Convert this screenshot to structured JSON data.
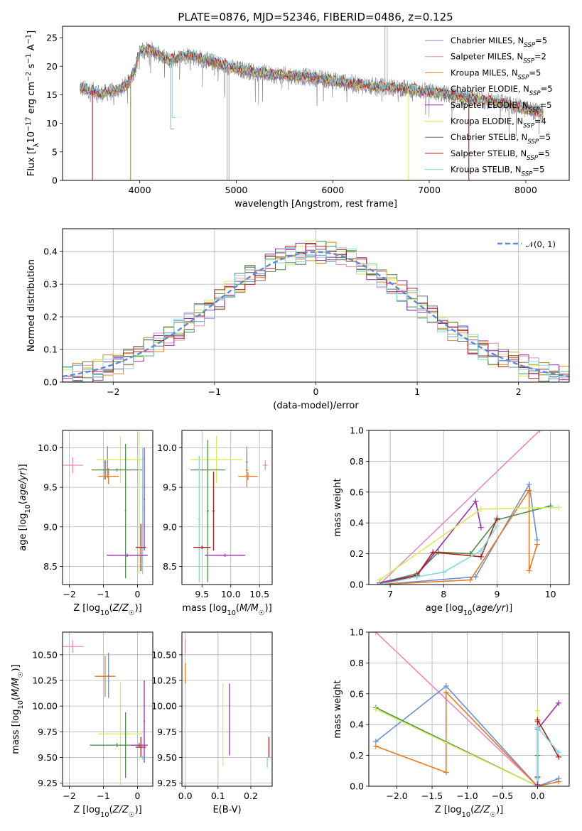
{
  "title": "PLATE=0876, MJD=52346, FIBERID=0486, z=0.125",
  "colors": {
    "chabrier_miles": "#6b8fd6",
    "salpeter_miles": "#e88bbf",
    "kroupa_miles": "#c98a1a",
    "chabrier_elodie": "#4e8a4e",
    "salpeter_elodie": "#9a2fae",
    "kroupa_elodie": "#d8eb5a",
    "chabrier_stelib": "#6e6e6e",
    "salpeter_stelib": "#b01c1c",
    "kroupa_stelib": "#7fd9df",
    "gauss": "#5b8bd6",
    "orange": "#e87a1e",
    "pink": "#e88bbf",
    "data_grey": "#b0b0b0"
  },
  "chart_data": [
    {
      "id": "spectrum",
      "type": "line",
      "title": "PLATE=0876, MJD=52346, FIBERID=0486, z=0.125",
      "xlabel": "wavelength [Angstrom, rest frame]",
      "ylabel": "Flux [f_λ 10^-17 erg cm^-2 s^-1 A^-1]",
      "xlim": [
        3200,
        8450
      ],
      "ylim": [
        0,
        27
      ],
      "xticks": [
        4000,
        5000,
        6000,
        7000,
        8000
      ],
      "yticks": [
        0,
        5,
        10,
        15,
        20,
        25
      ],
      "grid": false,
      "legend_position": "top-right",
      "legend": [
        {
          "main": "Chabrier MILES, N",
          "sub": "SSP",
          "tail": "=5",
          "color": "chabrier_miles"
        },
        {
          "main": "Salpeter MILES, N",
          "sub": "SSP",
          "tail": "=2",
          "color": "salpeter_miles"
        },
        {
          "main": "Kroupa MILES, N",
          "sub": "SSP",
          "tail": "=5",
          "color": "kroupa_miles"
        },
        {
          "main": "Chabrier ELODIE, N",
          "sub": "SSP",
          "tail": "=5",
          "color": "chabrier_elodie"
        },
        {
          "main": "Salpeter ELODIE, N",
          "sub": "SSP",
          "tail": "=5",
          "color": "salpeter_elodie"
        },
        {
          "main": "Kroupa ELODIE, N",
          "sub": "SSP",
          "tail": "=4",
          "color": "kroupa_elodie"
        },
        {
          "main": "Chabrier STELIB, N",
          "sub": "SSP",
          "tail": "=5",
          "color": "chabrier_stelib"
        },
        {
          "main": "Salpeter STELIB, N",
          "sub": "SSP",
          "tail": "=5",
          "color": "salpeter_stelib"
        },
        {
          "main": "Kroupa STELIB, N",
          "sub": "SSP",
          "tail": "=5",
          "color": "kroupa_stelib"
        }
      ],
      "continuum": [
        [
          3380,
          16.2
        ],
        [
          3500,
          15.8
        ],
        [
          3600,
          15.2
        ],
        [
          3700,
          15.5
        ],
        [
          3800,
          16.0
        ],
        [
          3880,
          17.0
        ],
        [
          3950,
          19.5
        ],
        [
          4000,
          22.5
        ],
        [
          4100,
          23.0
        ],
        [
          4200,
          22.0
        ],
        [
          4300,
          21.0
        ],
        [
          4400,
          21.5
        ],
        [
          4500,
          22.0
        ],
        [
          4600,
          21.5
        ],
        [
          4800,
          20.5
        ],
        [
          5000,
          19.5
        ],
        [
          5200,
          19.0
        ],
        [
          5400,
          18.5
        ],
        [
          5600,
          18.3
        ],
        [
          5800,
          18.0
        ],
        [
          6000,
          17.5
        ],
        [
          6200,
          17.0
        ],
        [
          6400,
          16.5
        ],
        [
          6600,
          16.3
        ],
        [
          6800,
          16.0
        ],
        [
          7000,
          15.5
        ],
        [
          7200,
          15.0
        ],
        [
          7400,
          14.5
        ],
        [
          7600,
          14.0
        ],
        [
          7800,
          13.5
        ],
        [
          8000,
          12.5
        ],
        [
          8180,
          11.8
        ]
      ],
      "dips": [
        {
          "x": 3510,
          "y": 0,
          "color": "salpeter_stelib"
        },
        {
          "x": 3905,
          "y": 0,
          "color": "kroupa_miles"
        },
        {
          "x": 4320,
          "y": 9,
          "color": "data_grey"
        },
        {
          "x": 4335,
          "y": 11,
          "color": "kroupa_stelib"
        },
        {
          "x": 4905,
          "y": 0,
          "color": "data_grey"
        },
        {
          "x": 4925,
          "y": 0,
          "color": "data_grey"
        },
        {
          "x": 6785,
          "y": 0,
          "color": "kroupa_elodie"
        },
        {
          "x": 7410,
          "y": 0,
          "color": "salpeter_stelib"
        }
      ],
      "spikes": [
        {
          "x": 6540,
          "y": 27
        },
        {
          "x": 6565,
          "y": 27
        }
      ]
    },
    {
      "id": "residuals",
      "type": "line",
      "xlabel": "(data-model)/error",
      "ylabel": "Normed distribution",
      "xlim": [
        -2.5,
        2.5
      ],
      "ylim": [
        0,
        0.47
      ],
      "xticks": [
        -2,
        -1,
        0,
        1,
        2
      ],
      "yticks": [
        0.0,
        0.1,
        0.2,
        0.3,
        0.4
      ],
      "grid": true,
      "legend_position": "top-right",
      "legend": [
        {
          "label": "𝒩(0, 1)",
          "color": "gauss",
          "style": "dashed"
        }
      ],
      "gaussian": {
        "mean": 0,
        "sigma": 1
      },
      "histogram_bin_width": 0.1,
      "histogram_series": 9
    },
    {
      "id": "age_vs_Z",
      "type": "scatter",
      "xlabel": "Z [log10(Z/Z☉)]",
      "ylabel": "age [log10(age/yr)]",
      "xlim": [
        -2.2,
        0.45
      ],
      "ylim": [
        8.27,
        10.22
      ],
      "xticks": [
        -2,
        -1,
        0
      ],
      "yticks": [
        8.5,
        9.0,
        9.5,
        10.0
      ],
      "grid": true,
      "points": [
        {
          "x": -1.9,
          "y": 9.78,
          "xerr": 0.3,
          "yerr": 0.1,
          "color": "pink"
        },
        {
          "x": -0.95,
          "y": 9.72,
          "xerr": 0.02,
          "yerr": 0.12,
          "color": "salpeter_stelib"
        },
        {
          "x": -0.85,
          "y": 9.64,
          "xerr": 0.3,
          "yerr": 0.1,
          "color": "orange"
        },
        {
          "x": -0.88,
          "y": 9.82,
          "xerr": 0.02,
          "yerr": 0.2,
          "color": "chabrier_miles"
        },
        {
          "x": -0.5,
          "y": 9.85,
          "xerr": 0.7,
          "yerr": 0.3,
          "color": "kroupa_elodie"
        },
        {
          "x": -0.6,
          "y": 9.72,
          "xerr": 0.75,
          "yerr": 0.02,
          "color": "chabrier_elodie"
        },
        {
          "x": -0.35,
          "y": 9.2,
          "xerr": 0.02,
          "yerr": 0.85,
          "color": "chabrier_elodie"
        },
        {
          "x": 0.05,
          "y": 9.3,
          "xerr": 0.02,
          "yerr": 0.9,
          "color": "kroupa_elodie"
        },
        {
          "x": 0.15,
          "y": 9.2,
          "xerr": 0.02,
          "yerr": 0.8,
          "color": "kroupa_stelib"
        },
        {
          "x": 0.2,
          "y": 9.35,
          "xerr": 0.02,
          "yerr": 0.65,
          "color": "salpeter_elodie"
        },
        {
          "x": 0.1,
          "y": 8.74,
          "xerr": 0.15,
          "yerr": 0.3,
          "color": "salpeter_stelib"
        },
        {
          "x": -0.3,
          "y": 8.64,
          "xerr": 0.6,
          "yerr": 0.02,
          "color": "salpeter_elodie"
        }
      ]
    },
    {
      "id": "age_vs_mass",
      "type": "scatter",
      "xlabel": "mass [log10(M/M☉)]",
      "ylabel": "",
      "xlim": [
        9.15,
        10.72
      ],
      "ylim": [
        8.27,
        10.22
      ],
      "xticks": [
        9.5,
        10.0,
        10.5
      ],
      "yticks": [
        8.5,
        9.0,
        9.5,
        10.0
      ],
      "grid": true,
      "points": [
        {
          "x": 10.6,
          "y": 9.78,
          "xerr": 0.04,
          "yerr": 0.06,
          "color": "pink"
        },
        {
          "x": 10.3,
          "y": 9.64,
          "xerr": 0.17,
          "yerr": 0.05,
          "color": "orange"
        },
        {
          "x": 10.28,
          "y": 9.82,
          "xerr": 0.02,
          "yerr": 0.2,
          "color": "chabrier_miles"
        },
        {
          "x": 10.28,
          "y": 9.72,
          "xerr": 0.02,
          "yerr": 0.22,
          "color": "orange"
        },
        {
          "x": 9.75,
          "y": 9.85,
          "xerr": 0.45,
          "yerr": 0.3,
          "color": "kroupa_elodie"
        },
        {
          "x": 9.6,
          "y": 9.72,
          "xerr": 0.3,
          "yerr": 0.02,
          "color": "chabrier_elodie"
        },
        {
          "x": 9.6,
          "y": 9.2,
          "xerr": 0.02,
          "yerr": 0.9,
          "color": "chabrier_elodie"
        },
        {
          "x": 9.45,
          "y": 9.1,
          "xerr": 0.02,
          "yerr": 0.8,
          "color": "kroupa_stelib"
        },
        {
          "x": 9.7,
          "y": 9.2,
          "xerr": 0.02,
          "yerr": 0.5,
          "color": "salpeter_stelib"
        },
        {
          "x": 9.5,
          "y": 8.74,
          "xerr": 0.15,
          "yerr": 0.02,
          "color": "salpeter_stelib"
        },
        {
          "x": 9.9,
          "y": 8.64,
          "xerr": 0.35,
          "yerr": 0.02,
          "color": "salpeter_elodie"
        }
      ]
    },
    {
      "id": "weight_vs_age",
      "type": "line",
      "xlabel": "age [log10(age/yr)]",
      "ylabel": "mass weight",
      "xlim": [
        6.6,
        10.35
      ],
      "ylim": [
        0,
        1.0
      ],
      "xticks": [
        7,
        8,
        9,
        10
      ],
      "yticks": [
        0.0,
        0.2,
        0.4,
        0.6,
        0.8,
        1.0
      ],
      "grid": true,
      "series": [
        {
          "color": "pink",
          "x": [
            6.8,
            9.8
          ],
          "y": [
            0.0,
            1.0
          ]
        },
        {
          "color": "chabrier_miles",
          "x": [
            6.8,
            8.6,
            9.6,
            9.75
          ],
          "y": [
            0.0,
            0.05,
            0.65,
            0.29
          ]
        },
        {
          "color": "orange",
          "x": [
            6.8,
            8.5,
            9.6,
            9.6,
            9.75
          ],
          "y": [
            0.0,
            0.03,
            0.61,
            0.09,
            0.26
          ]
        },
        {
          "color": "chabrier_elodie",
          "x": [
            6.8,
            7.5,
            7.9,
            8.5,
            9.0,
            10.0
          ],
          "y": [
            0.01,
            0.07,
            0.21,
            0.2,
            0.42,
            0.51
          ]
        },
        {
          "color": "salpeter_elodie",
          "x": [
            6.8,
            7.5,
            8.6,
            8.7
          ],
          "y": [
            0.01,
            0.06,
            0.54,
            0.37
          ]
        },
        {
          "color": "kroupa_elodie",
          "x": [
            6.8,
            8.7,
            10.15
          ],
          "y": [
            0.03,
            0.49,
            0.5
          ]
        },
        {
          "color": "salpeter_stelib",
          "x": [
            6.8,
            7.5,
            7.8,
            8.7,
            9.0
          ],
          "y": [
            0.0,
            0.06,
            0.21,
            0.18,
            0.43
          ]
        },
        {
          "color": "kroupa_stelib",
          "x": [
            6.8,
            7.5,
            8.0,
            8.7,
            9.0
          ],
          "y": [
            0.0,
            0.05,
            0.08,
            0.22,
            0.38
          ]
        }
      ]
    },
    {
      "id": "mass_vs_Z",
      "type": "scatter",
      "xlabel": "Z [log10(Z/Z☉)]",
      "ylabel": "mass [log10(M/M☉)]",
      "xlim": [
        -2.2,
        0.45
      ],
      "ylim": [
        9.22,
        10.72
      ],
      "xticks": [
        -2,
        -1,
        0
      ],
      "yticks": [
        9.25,
        9.5,
        9.75,
        10.0,
        10.25,
        10.5
      ],
      "grid": true,
      "points": [
        {
          "x": -1.9,
          "y": 10.58,
          "xerr": 0.3,
          "yerr": 0.06,
          "color": "pink"
        },
        {
          "x": -0.95,
          "y": 10.29,
          "xerr": 0.3,
          "yerr": 0.2,
          "color": "orange"
        },
        {
          "x": -0.85,
          "y": 10.3,
          "xerr": 0.02,
          "yerr": 0.22,
          "color": "chabrier_miles"
        },
        {
          "x": -0.5,
          "y": 9.73,
          "xerr": 0.65,
          "yerr": 0.5,
          "color": "kroupa_elodie"
        },
        {
          "x": -0.6,
          "y": 9.62,
          "xerr": 0.8,
          "yerr": 0.02,
          "color": "chabrier_elodie"
        },
        {
          "x": -0.35,
          "y": 9.62,
          "xerr": 0.02,
          "yerr": 0.32,
          "color": "chabrier_elodie"
        },
        {
          "x": 0.05,
          "y": 9.62,
          "xerr": 0.25,
          "yerr": 0.02,
          "color": "salpeter_elodie"
        },
        {
          "x": 0.1,
          "y": 9.6,
          "xerr": 0.15,
          "yerr": 0.1,
          "color": "salpeter_stelib"
        },
        {
          "x": 0.15,
          "y": 9.5,
          "xerr": 0.15,
          "yerr": 0.02,
          "color": "kroupa_stelib"
        },
        {
          "x": 0.2,
          "y": 9.85,
          "xerr": 0.02,
          "yerr": 0.4,
          "color": "salpeter_elodie"
        }
      ]
    },
    {
      "id": "mass_vs_ebv",
      "type": "scatter",
      "xlabel": "E(B-V)",
      "ylabel": "",
      "xlim": [
        -0.01,
        0.265
      ],
      "ylim": [
        9.22,
        10.72
      ],
      "xticks": [
        0.0,
        0.1,
        0.2
      ],
      "yticks": [
        9.25,
        9.5,
        9.75,
        10.0,
        10.25,
        10.5
      ],
      "grid": true,
      "points": [
        {
          "x": 0.0,
          "y": 10.58,
          "xerr": 0.0,
          "yerr": 0.07,
          "color": "pink"
        },
        {
          "x": 0.0,
          "y": 10.32,
          "xerr": 0.0,
          "yerr": 0.1,
          "color": "orange"
        },
        {
          "x": 0.115,
          "y": 9.82,
          "xerr": 0.0,
          "yerr": 0.4,
          "color": "kroupa_elodie"
        },
        {
          "x": 0.135,
          "y": 9.87,
          "xerr": 0.0,
          "yerr": 0.35,
          "color": "salpeter_elodie"
        },
        {
          "x": 0.25,
          "y": 9.45,
          "xerr": 0.0,
          "yerr": 0.05,
          "color": "kroupa_stelib"
        },
        {
          "x": 0.255,
          "y": 9.6,
          "xerr": 0.0,
          "yerr": 0.1,
          "color": "salpeter_stelib"
        }
      ]
    },
    {
      "id": "weight_vs_Z",
      "type": "line",
      "xlabel": "Z [log10(Z/Z☉)]",
      "ylabel": "mass weight",
      "xlim": [
        -2.4,
        0.45
      ],
      "ylim": [
        0,
        1.0
      ],
      "xticks": [
        -2.0,
        -1.5,
        -1.0,
        -0.5,
        0.0
      ],
      "yticks": [
        0.0,
        0.2,
        0.4,
        0.6,
        0.8,
        1.0
      ],
      "grid": true,
      "series": [
        {
          "color": "pink",
          "x": [
            -2.3,
            0.0
          ],
          "y": [
            1.0,
            0.0
          ]
        },
        {
          "color": "chabrier_miles",
          "x": [
            -2.3,
            -1.3,
            0.0,
            0.3
          ],
          "y": [
            0.29,
            0.65,
            0.0,
            0.05
          ]
        },
        {
          "color": "orange",
          "x": [
            -2.3,
            -1.3,
            -1.3,
            0.0,
            0.3
          ],
          "y": [
            0.26,
            0.09,
            0.61,
            0.0,
            0.03
          ]
        },
        {
          "color": "chabrier_elodie",
          "x": [
            -2.3,
            0.0,
            0.0,
            0.0
          ],
          "y": [
            0.51,
            0.0,
            0.2,
            0.42
          ]
        },
        {
          "color": "kroupa_elodie",
          "x": [
            -2.3,
            0.0,
            0.0
          ],
          "y": [
            0.5,
            0.0,
            0.49
          ]
        },
        {
          "color": "salpeter_elodie",
          "x": [
            0.0,
            0.0,
            0.3
          ],
          "y": [
            0.01,
            0.37,
            0.54
          ]
        },
        {
          "color": "salpeter_stelib",
          "x": [
            0.0,
            0.0,
            0.3
          ],
          "y": [
            0.06,
            0.43,
            0.19
          ]
        },
        {
          "color": "kroupa_stelib",
          "x": [
            0.0,
            0.0,
            0.3
          ],
          "y": [
            0.05,
            0.38,
            0.22
          ]
        }
      ]
    }
  ]
}
